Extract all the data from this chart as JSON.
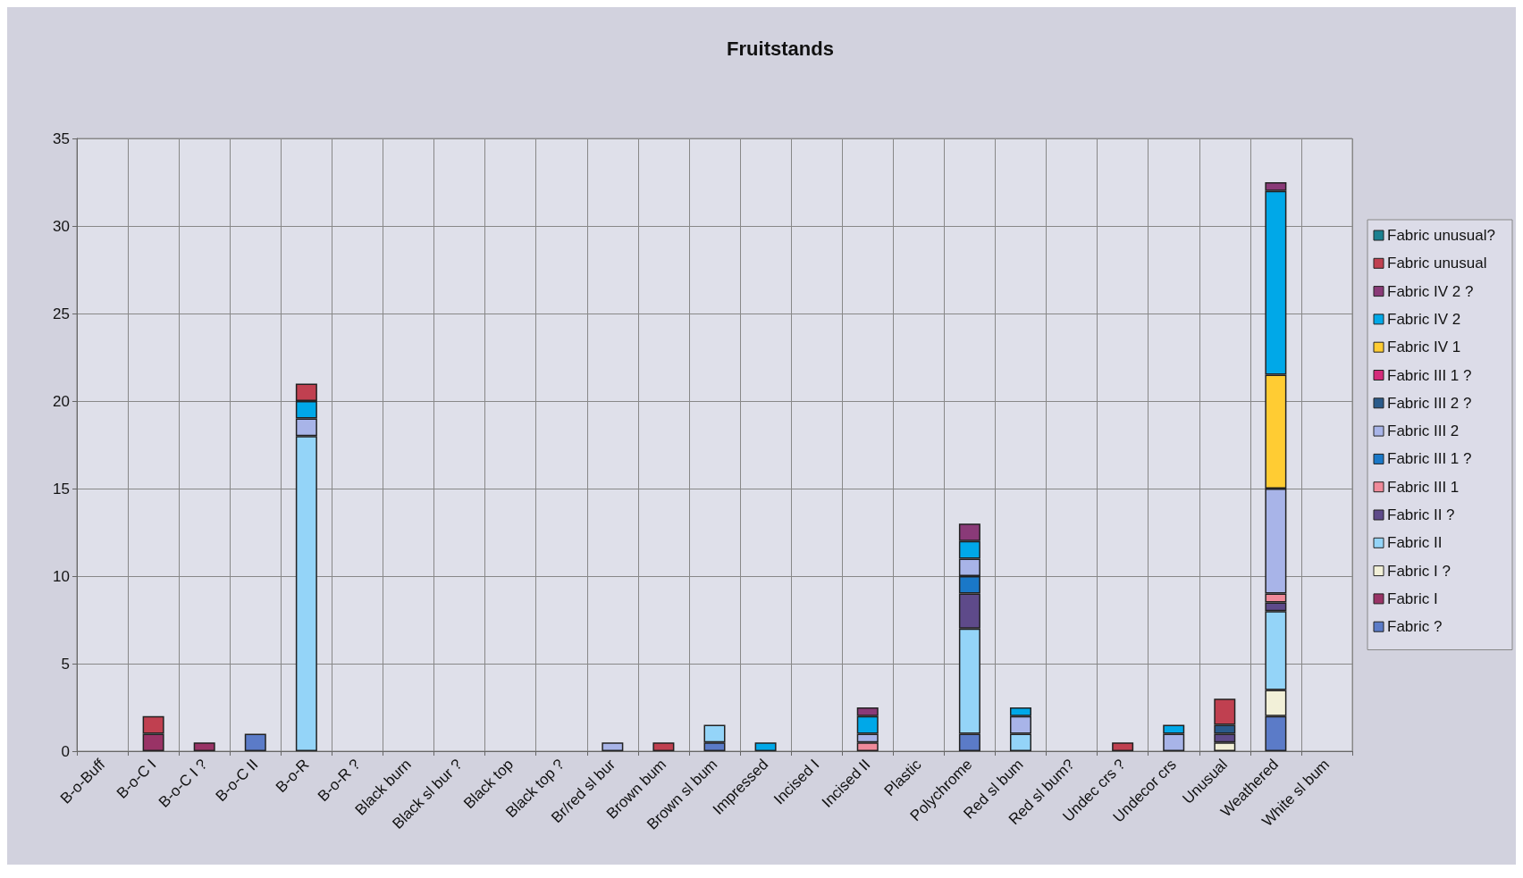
{
  "chart_data": {
    "type": "bar",
    "title": "Fruitstands",
    "stacked": true,
    "grid": true,
    "legend": "right",
    "categories": [
      "B-o-Buff",
      "B-o-C I",
      "B-o-C I ?",
      "B-o-C II",
      "B-o-R",
      "B-o-R ?",
      "Black burn",
      "Black sl bur ?",
      "Black top",
      "Black top ?",
      "Br/red sl bur",
      "Brown bum",
      "Brown sl bum",
      "Impressed",
      "Incised I",
      "Incised II",
      "Plastic",
      "Polychrome",
      "Red sl bum",
      "Red sl bum?",
      "Undec crs ?",
      "Undecor crs",
      "Unusual",
      "Weathered",
      "White sl bum"
    ],
    "ylim": [
      0,
      35
    ],
    "yticks": [
      0,
      5,
      10,
      15,
      20,
      25,
      30,
      35
    ],
    "series": [
      {
        "name": "Fabric ?",
        "color": "#5b7bc8",
        "values": [
          null,
          null,
          null,
          1,
          null,
          null,
          null,
          null,
          null,
          null,
          null,
          null,
          0.5,
          null,
          null,
          null,
          null,
          1,
          null,
          null,
          null,
          null,
          null,
          2,
          null
        ]
      },
      {
        "name": "Fabric I",
        "color": "#993366",
        "values": [
          null,
          1,
          0.5,
          null,
          null,
          null,
          null,
          null,
          null,
          null,
          null,
          null,
          null,
          null,
          null,
          null,
          null,
          null,
          null,
          null,
          null,
          null,
          null,
          null,
          null
        ]
      },
      {
        "name": "Fabric I ?",
        "color": "#f2f0d8",
        "values": [
          null,
          null,
          null,
          null,
          null,
          null,
          null,
          null,
          null,
          null,
          null,
          null,
          null,
          null,
          null,
          null,
          null,
          null,
          null,
          null,
          null,
          null,
          0.5,
          1.5,
          null
        ]
      },
      {
        "name": "Fabric II",
        "color": "#94d4f8",
        "values": [
          null,
          null,
          null,
          null,
          18,
          null,
          null,
          null,
          null,
          null,
          null,
          null,
          1,
          null,
          null,
          null,
          null,
          6,
          1,
          null,
          null,
          null,
          null,
          4.5,
          null
        ]
      },
      {
        "name": "Fabric II ?",
        "color": "#5e4a8a",
        "values": [
          null,
          null,
          null,
          null,
          null,
          null,
          null,
          null,
          null,
          null,
          null,
          null,
          null,
          null,
          null,
          null,
          null,
          2,
          null,
          null,
          null,
          null,
          0.5,
          0.5,
          null
        ]
      },
      {
        "name": "Fabric III 1",
        "color": "#f08a9a",
        "values": [
          null,
          null,
          null,
          null,
          null,
          null,
          null,
          null,
          null,
          null,
          null,
          null,
          null,
          null,
          null,
          0.5,
          null,
          null,
          null,
          null,
          null,
          null,
          null,
          0.5,
          null
        ]
      },
      {
        "name": "Fabric III 1 ?",
        "color": "#1a78c8",
        "values": [
          null,
          null,
          null,
          null,
          null,
          null,
          null,
          null,
          null,
          null,
          null,
          null,
          null,
          null,
          null,
          null,
          null,
          1,
          null,
          null,
          null,
          null,
          null,
          null,
          null
        ]
      },
      {
        "name": "Fabric III 2",
        "color": "#a8b4e8",
        "values": [
          null,
          null,
          null,
          null,
          1,
          null,
          null,
          null,
          null,
          null,
          0.5,
          null,
          null,
          null,
          null,
          0.5,
          null,
          1,
          1,
          null,
          null,
          1,
          null,
          6,
          null
        ]
      },
      {
        "name": "Fabric III 2 ?",
        "color": "#2a5a8a",
        "values": [
          null,
          null,
          null,
          null,
          null,
          null,
          null,
          null,
          null,
          null,
          null,
          null,
          null,
          null,
          null,
          null,
          null,
          null,
          null,
          null,
          null,
          null,
          0.5,
          null,
          null
        ]
      },
      {
        "name": "Fabric III 1 ?",
        "color": "#d42a7a",
        "values": [
          null,
          null,
          null,
          null,
          null,
          null,
          null,
          null,
          null,
          null,
          null,
          null,
          null,
          null,
          null,
          null,
          null,
          null,
          null,
          null,
          null,
          null,
          null,
          null,
          null
        ]
      },
      {
        "name": "Fabric IV 1",
        "color": "#ffcc33",
        "values": [
          null,
          null,
          null,
          null,
          null,
          null,
          null,
          null,
          null,
          null,
          null,
          null,
          null,
          null,
          null,
          null,
          null,
          null,
          null,
          null,
          null,
          null,
          null,
          6.5,
          null
        ]
      },
      {
        "name": "Fabric IV 2",
        "color": "#00a8e8",
        "values": [
          null,
          null,
          null,
          null,
          1,
          null,
          null,
          null,
          null,
          null,
          null,
          null,
          null,
          0.5,
          null,
          1,
          null,
          1,
          0.5,
          null,
          null,
          0.5,
          null,
          10.5,
          null
        ]
      },
      {
        "name": "Fabric IV 2 ?",
        "color": "#8a3a78",
        "values": [
          null,
          null,
          null,
          null,
          null,
          null,
          null,
          null,
          null,
          null,
          null,
          null,
          null,
          null,
          null,
          0.5,
          null,
          1,
          null,
          null,
          null,
          null,
          null,
          0.5,
          null
        ]
      },
      {
        "name": "Fabric unusual",
        "color": "#c04050",
        "values": [
          null,
          1,
          null,
          null,
          1,
          null,
          null,
          null,
          null,
          null,
          null,
          0.5,
          null,
          null,
          null,
          null,
          null,
          null,
          null,
          null,
          0.5,
          null,
          1.5,
          null,
          null
        ]
      },
      {
        "name": "Fabric unusual?",
        "color": "#1a8090",
        "values": [
          null,
          null,
          null,
          null,
          null,
          null,
          null,
          null,
          null,
          null,
          null,
          null,
          null,
          null,
          null,
          null,
          null,
          null,
          null,
          null,
          null,
          null,
          null,
          null,
          null
        ]
      }
    ]
  }
}
